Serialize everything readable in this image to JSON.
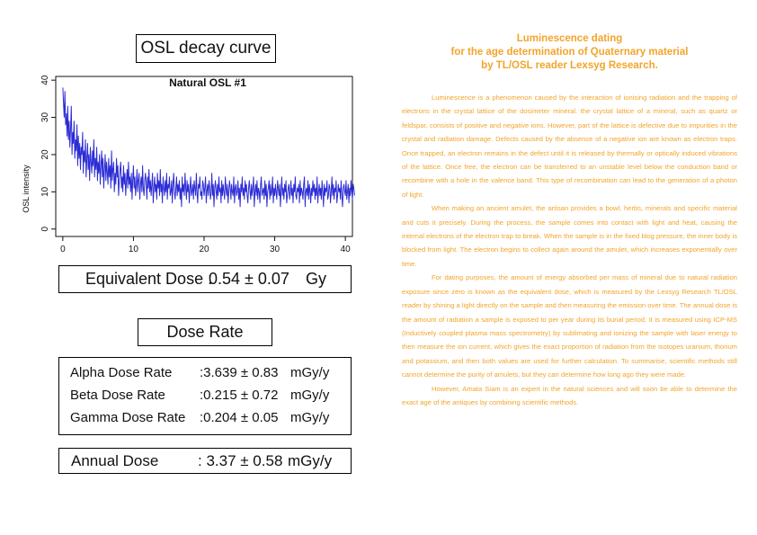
{
  "osl_title": "OSL decay curve",
  "chart_data": {
    "type": "line",
    "title": "Natural OSL #1",
    "xlabel": "",
    "ylabel": "OSL intensity",
    "xlim": [
      -1,
      41
    ],
    "ylim": [
      -2,
      41
    ],
    "xticks": [
      0,
      10,
      20,
      30,
      40
    ],
    "yticks": [
      0,
      10,
      20,
      30,
      40
    ],
    "grid": false,
    "series": [
      {
        "color": "#2b2bd6",
        "x_start": 0,
        "x_step": 0.1,
        "values": [
          38,
          34,
          30,
          37,
          28,
          31,
          25,
          33,
          24,
          29,
          22,
          27,
          33,
          20,
          26,
          23,
          29,
          19,
          24,
          21,
          28,
          17,
          25,
          19,
          23,
          16,
          22,
          20,
          26,
          15,
          21,
          18,
          24,
          14,
          19,
          23,
          16,
          20,
          13,
          22,
          18,
          15,
          21,
          17,
          24,
          14,
          19,
          16,
          22,
          13,
          18,
          15,
          20,
          12,
          17,
          21,
          14,
          19,
          11,
          16,
          20,
          13,
          18,
          15,
          12,
          19,
          14,
          17,
          11,
          21,
          13,
          16,
          18,
          10,
          15,
          12,
          19,
          14,
          17,
          9,
          13,
          16,
          18,
          11,
          14,
          10,
          17,
          12,
          15,
          9,
          13,
          16,
          11,
          18,
          12,
          14,
          10,
          15,
          8,
          13,
          17,
          11,
          14,
          9,
          12,
          16,
          10,
          13,
          15,
          8,
          12,
          14,
          10,
          17,
          11,
          9,
          13,
          15,
          12,
          8,
          14,
          11,
          16,
          10,
          13,
          9,
          12,
          15,
          7,
          11,
          14,
          10,
          12,
          8,
          15,
          11,
          13,
          9,
          16,
          10,
          12,
          7,
          14,
          11,
          9,
          13,
          10,
          15,
          8,
          12,
          11,
          14,
          9,
          10,
          13,
          7,
          12,
          15,
          10,
          8,
          11,
          14,
          9,
          12,
          10,
          13,
          8,
          11,
          6,
          14,
          10,
          12,
          9,
          15,
          11,
          8,
          13,
          10,
          12,
          7,
          11,
          14,
          9,
          10,
          12,
          8,
          13,
          11,
          9,
          15,
          10,
          7,
          12,
          11,
          14,
          9,
          10,
          8,
          13,
          12,
          9,
          11,
          14,
          7,
          10,
          12,
          9,
          13,
          11,
          8,
          10,
          15,
          9,
          12,
          6,
          11,
          13,
          10,
          8,
          12,
          9,
          14,
          10,
          11,
          7,
          13,
          9,
          12,
          10,
          8,
          14,
          11,
          9,
          12,
          7,
          10,
          13,
          11,
          8,
          12,
          10,
          9,
          14,
          7,
          11,
          12,
          9,
          10,
          13,
          8,
          11,
          6,
          12,
          10,
          14,
          9,
          11,
          8,
          13,
          10,
          12,
          9,
          7,
          11,
          13,
          10,
          8,
          12,
          9,
          11,
          14,
          6,
          10,
          12,
          9,
          13,
          8,
          11,
          10,
          7,
          12,
          14,
          9,
          10,
          11,
          8,
          13,
          9,
          12,
          6,
          10,
          11,
          13,
          8,
          12,
          9,
          10,
          14,
          7,
          11,
          9,
          12,
          10,
          8,
          13,
          11,
          9,
          12,
          6,
          10,
          14,
          9,
          11,
          8,
          12,
          10,
          13,
          7,
          9,
          11,
          12,
          8,
          10,
          13,
          9,
          11,
          7,
          12,
          10,
          14,
          9,
          8,
          11,
          10,
          12,
          7,
          13,
          9,
          11,
          10,
          8,
          12,
          14,
          6,
          10,
          11,
          9,
          13,
          8,
          12,
          10,
          7,
          11,
          9,
          13,
          10,
          12,
          8,
          11,
          9,
          14,
          7,
          10,
          12,
          9,
          11,
          8,
          13,
          10,
          6,
          12,
          9,
          11,
          10,
          13,
          8,
          9,
          12,
          11,
          7,
          10,
          14,
          9,
          12,
          8,
          11,
          10,
          13,
          7,
          9,
          12,
          10,
          11,
          8,
          13,
          9,
          6,
          11,
          12,
          10,
          9,
          13,
          8,
          10,
          12,
          7,
          11,
          9,
          13,
          10,
          8,
          12,
          11,
          9
        ]
      }
    ]
  },
  "equivalent_dose": {
    "label": "Equivalent Dose :",
    "value": "0.54 ± 0.07",
    "unit": "Gy"
  },
  "dose_rate_title": "Dose Rate",
  "rates": [
    {
      "name": "Alpha Dose Rate",
      "value": ":3.639 ± 0.83",
      "unit": "mGy/y"
    },
    {
      "name": "Beta Dose Rate",
      "value": ":0.215 ± 0.72",
      "unit": "mGy/y"
    },
    {
      "name": "Gamma Dose Rate",
      "value": ":0.204 ± 0.05",
      "unit": "mGy/y"
    }
  ],
  "annual_dose": {
    "label": "Annual Dose",
    "value": ": 3.37 ± 0.58",
    "unit": "mGy/y"
  },
  "article": {
    "color": "#f3a42b",
    "title_lines": [
      "Luminescence dating",
      "for the age determination of Quaternary material",
      "by TL/OSL reader Lexsyg Research."
    ],
    "paragraphs": [
      "Luminescence is a phenomenon caused by the interaction of ionising radiation and the trapping of electrons in the crystal lattice of the dosimeter mineral. the crystal lattice of a mineral, such as quartz or feldspar, consists of positive and negative ions. However, part of the lattice is defective due to impurities in the crystal and radiation damage. Defects caused by the absence of a negative ion are known as electron traps. Once trapped, an electron remains in the defect until it is released by thermally or optically induced vibrations of the lattice. Once free, the electron can be transferred to an unstable level below the conduction band or recombine with a hole in the valence band. This type of recombination can lead to the generation of a photon of light.",
      "When making an ancient amulet, the artisan provides a bowl, herbs, minerals and specific material and cuts it precisely. During the process, the sample comes into contact with light and heat, causing the internal electrons of the electron trap to break. When the sample is in the fixed blog pressure, the inner body is blocked from light. The electron begins to collect again around the amulet, which increases exponentially over time.",
      "For dating purposes, the amount of energy absorbed per mass of mineral due to natural radiation exposure since zero is known as the equivalent dose, which is measured by the Lexsyg Research TL/OSL reader by shining a light directly on the sample and then measuring the emission over time. The annual dose is the amount of radiation a sample is exposed to per year during its burial period. It is measured using ICP-MS (Inductively coupled plasma mass spectrometry) by sublimating and ionizing the sample with laser energy to then measure the ion current, which gives the exact proportion of radiation from the isotopes uranium, thorium and potassium, and then both values are used for further calculation. To summarise, scientific methods still cannot determine the purity of amulets, but they can determine how long ago they were made.",
      "However, Amata Siam is an expert in the natural sciences and will soon be able to determine the exact age of the antiques by combining scientific methods."
    ]
  }
}
